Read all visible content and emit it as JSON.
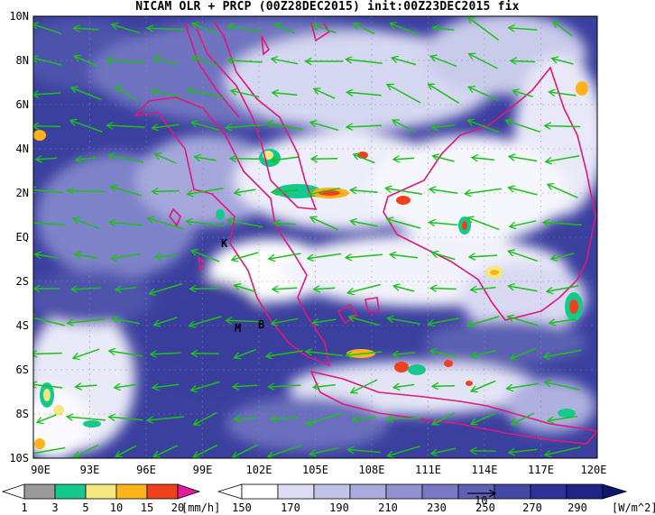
{
  "title": "NICAM OLR + PRCP (00Z28DEC2015) init:00Z23DEC2015 fix",
  "lat_labels": [
    "10N",
    "8N",
    "6N",
    "4N",
    "2N",
    "EQ",
    "2S",
    "4S",
    "6S",
    "8S",
    "10S"
  ],
  "lon_labels": [
    "90E",
    "93E",
    "96E",
    "99E",
    "102E",
    "105E",
    "108E",
    "111E",
    "114E",
    "117E",
    "120E"
  ],
  "station_labels": [
    "K",
    "M",
    "B"
  ],
  "vector_reference_label": "10",
  "precip_legend": {
    "ticks": [
      "1",
      "3",
      "5",
      "10",
      "15",
      "20"
    ],
    "unit": "[mm/h]",
    "colors": [
      "#9a9a9a",
      "#14c98c",
      "#f3e77e",
      "#ffb31a",
      "#f0401e",
      "#e21a9e"
    ]
  },
  "olr_legend": {
    "ticks": [
      "150",
      "170",
      "190",
      "210",
      "230",
      "250",
      "270",
      "290"
    ],
    "unit": "[W/m^2]",
    "colors": [
      "#ffffff",
      "#dcdcf2",
      "#c3c3e8",
      "#aaabdc",
      "#9192cf",
      "#7779c2",
      "#5e61b6",
      "#4549a6",
      "#2d3296",
      "#1d2486",
      "#0e1670"
    ]
  },
  "colors": {
    "coastline": "#e0187a",
    "wind_vectors": "#19c219",
    "grid": "#8a8aa8"
  }
}
